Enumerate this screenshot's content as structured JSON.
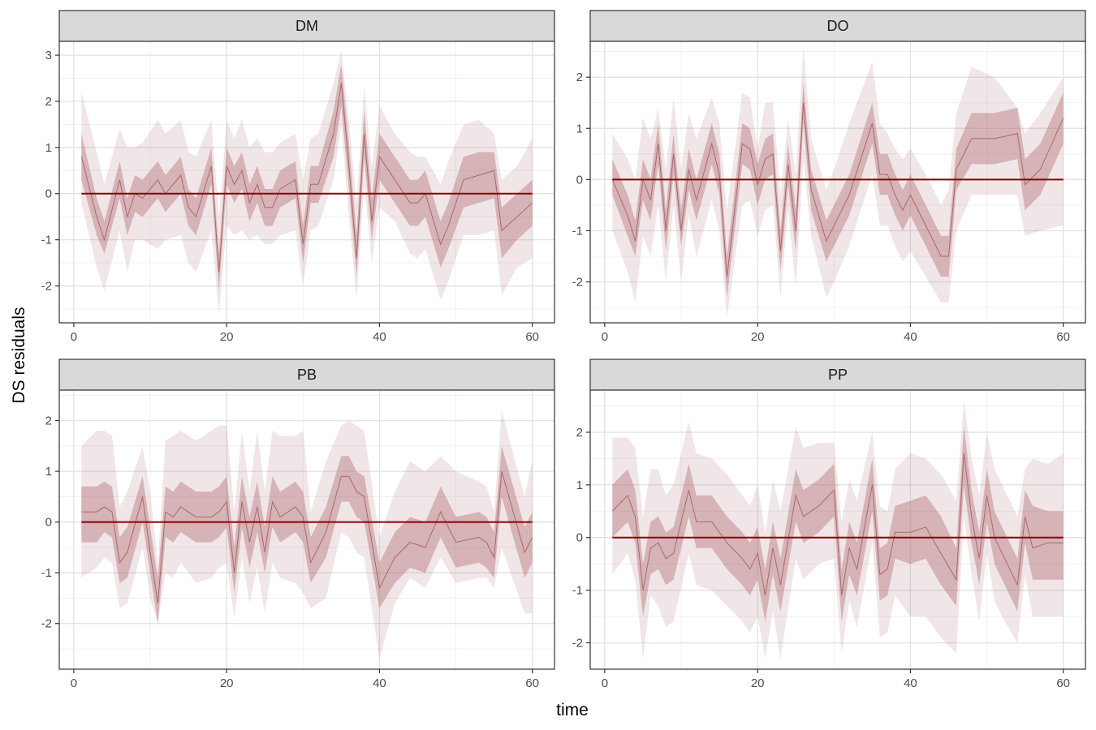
{
  "chart_data": {
    "type": "line",
    "ylabel": "DS residuals",
    "xlabel": "time",
    "colors": {
      "line": "#8b0000",
      "ribbon": "#b47679",
      "band_inner_opacity": 0.45,
      "band_outer_opacity": 0.18
    },
    "x_ticks": [
      0,
      20,
      40,
      60
    ],
    "xlim": [
      -1.9,
      62.9
    ],
    "panels": [
      {
        "name": "DM",
        "ylim": [
          -2.8,
          3.3
        ],
        "y_ticks": [
          -2,
          -1,
          0,
          1,
          2,
          3
        ],
        "y_tick_labels": [
          "-2",
          "-1",
          "0",
          "1",
          "2",
          "3"
        ],
        "x": [
          1,
          3,
          4,
          6,
          7,
          8,
          9,
          11,
          12,
          14,
          15,
          16,
          18,
          19,
          20,
          21,
          22,
          23,
          24,
          25,
          26,
          27,
          29,
          30,
          31,
          32,
          34,
          35,
          36,
          37,
          38,
          39,
          40,
          42,
          44,
          45,
          46,
          48,
          49,
          51,
          53,
          55,
          56,
          58,
          60
        ],
        "median": [
          0.8,
          -0.5,
          -1.0,
          0.3,
          -0.5,
          0.0,
          -0.1,
          0.3,
          0.0,
          0.4,
          -0.3,
          -0.5,
          0.6,
          -1.7,
          0.6,
          0.2,
          0.5,
          -0.2,
          0.2,
          -0.3,
          -0.3,
          0.1,
          0.3,
          -1.1,
          0.2,
          0.2,
          1.3,
          2.4,
          0.6,
          -1.4,
          1.3,
          -0.6,
          0.8,
          0.3,
          -0.2,
          -0.2,
          0.0,
          -1.1,
          -0.7,
          0.3,
          0.4,
          0.5,
          -0.8,
          -0.5,
          -0.2
        ],
        "inner_lo": [
          0.3,
          -0.9,
          -1.3,
          -0.1,
          -0.9,
          -0.4,
          -0.5,
          -0.1,
          -0.4,
          0.0,
          -0.7,
          -0.9,
          0.2,
          -2.1,
          0.2,
          -0.2,
          0.1,
          -0.6,
          -0.2,
          -0.7,
          -0.7,
          -0.3,
          -0.1,
          -1.5,
          -0.2,
          -0.2,
          0.8,
          1.9,
          0.1,
          -1.8,
          0.8,
          -1.0,
          0.3,
          -0.2,
          -0.7,
          -0.7,
          -0.5,
          -1.6,
          -1.2,
          -0.3,
          -0.2,
          -0.1,
          -1.4,
          -1.0,
          -0.7
        ],
        "inner_hi": [
          1.3,
          -0.1,
          -0.6,
          0.7,
          -0.1,
          0.4,
          0.3,
          0.7,
          0.4,
          0.8,
          0.1,
          -0.1,
          1.0,
          -1.3,
          1.0,
          0.6,
          0.9,
          0.2,
          0.6,
          0.1,
          0.1,
          0.5,
          0.7,
          -0.7,
          0.6,
          0.6,
          1.8,
          2.8,
          1.1,
          -0.9,
          1.8,
          -0.1,
          1.3,
          0.8,
          0.3,
          0.3,
          0.5,
          -0.6,
          -0.2,
          0.8,
          0.9,
          0.9,
          -0.3,
          0.0,
          0.3
        ],
        "outer_lo": [
          -0.2,
          -1.6,
          -2.1,
          -0.8,
          -1.7,
          -1.0,
          -1.0,
          -1.2,
          -1.0,
          -0.9,
          -1.5,
          -1.7,
          -0.8,
          -2.6,
          -0.7,
          -0.9,
          -0.8,
          -1.0,
          -0.9,
          -1.1,
          -1.1,
          -0.9,
          -0.8,
          -2.0,
          -0.8,
          -0.7,
          0.3,
          1.5,
          -0.5,
          -2.3,
          0.2,
          -1.5,
          -0.3,
          -0.6,
          -1.3,
          -1.4,
          -1.2,
          -2.3,
          -1.9,
          -0.9,
          -0.9,
          -0.8,
          -2.2,
          -1.6,
          -1.4
        ],
        "outer_hi": [
          2.2,
          0.9,
          0.2,
          1.4,
          1.0,
          1.0,
          1.1,
          1.6,
          1.3,
          1.6,
          0.9,
          0.8,
          1.6,
          -0.5,
          1.6,
          1.2,
          1.6,
          1.0,
          1.2,
          0.9,
          0.9,
          1.1,
          1.3,
          0.3,
          1.2,
          1.3,
          2.4,
          3.1,
          1.6,
          -0.2,
          2.3,
          0.6,
          1.9,
          1.3,
          0.9,
          0.8,
          0.8,
          0.2,
          0.7,
          1.5,
          1.6,
          1.3,
          0.3,
          0.6,
          1.2
        ]
      },
      {
        "name": "DO",
        "ylim": [
          -2.8,
          2.7
        ],
        "y_ticks": [
          -2,
          -1,
          0,
          1,
          2
        ],
        "y_tick_labels": [
          "-2",
          "-1",
          "0",
          "1",
          "2"
        ],
        "x": [
          1,
          3,
          4,
          5,
          6,
          7,
          8,
          9,
          10,
          11,
          12,
          14,
          15,
          16,
          18,
          19,
          20,
          21,
          22,
          23,
          24,
          25,
          26,
          27,
          29,
          30,
          32,
          35,
          36,
          37,
          38,
          39,
          40,
          42,
          44,
          45,
          46,
          48,
          51,
          54,
          55,
          57,
          60
        ],
        "median": [
          0.0,
          -0.7,
          -1.2,
          0.0,
          -0.4,
          0.7,
          -1.0,
          0.5,
          -1.0,
          0.2,
          -0.4,
          0.7,
          0.1,
          -1.9,
          0.7,
          0.6,
          -0.1,
          0.4,
          0.5,
          -1.4,
          0.3,
          -1.0,
          1.5,
          -0.2,
          -1.2,
          -0.9,
          -0.3,
          1.1,
          0.1,
          0.1,
          -0.3,
          -0.6,
          -0.3,
          -0.9,
          -1.5,
          -1.5,
          0.2,
          0.8,
          0.8,
          0.9,
          -0.1,
          0.2,
          1.2
        ],
        "inner_lo": [
          -0.3,
          -1.1,
          -1.5,
          -0.4,
          -0.8,
          0.3,
          -1.4,
          0.1,
          -1.3,
          -0.2,
          -0.8,
          0.3,
          -0.3,
          -2.3,
          0.3,
          0.2,
          -0.5,
          0.0,
          0.1,
          -1.8,
          -0.1,
          -1.4,
          1.1,
          -0.6,
          -1.6,
          -1.3,
          -0.7,
          0.7,
          -0.3,
          -0.3,
          -0.7,
          -1.0,
          -0.7,
          -1.3,
          -1.9,
          -1.9,
          -0.2,
          0.3,
          0.3,
          0.4,
          -0.6,
          -0.3,
          0.7
        ],
        "inner_hi": [
          0.4,
          -0.3,
          -0.8,
          0.4,
          0.0,
          1.1,
          -0.6,
          0.9,
          -0.6,
          0.6,
          0.0,
          1.1,
          0.5,
          -1.5,
          1.1,
          1.0,
          0.3,
          0.8,
          0.9,
          -1.0,
          0.7,
          -0.6,
          1.9,
          0.2,
          -0.8,
          -0.5,
          0.1,
          1.5,
          0.5,
          0.5,
          0.1,
          -0.2,
          0.1,
          -0.5,
          -1.1,
          -1.1,
          0.6,
          1.3,
          1.3,
          1.4,
          0.4,
          0.7,
          1.7
        ],
        "outer_lo": [
          -1.0,
          -1.8,
          -2.4,
          -1.1,
          -1.5,
          -0.5,
          -2.0,
          -0.5,
          -2.0,
          -0.7,
          -1.5,
          -0.4,
          -1.0,
          -2.7,
          -0.5,
          -0.4,
          -1.1,
          -0.6,
          -0.5,
          -2.3,
          -0.6,
          -2.1,
          0.4,
          -1.1,
          -2.3,
          -2.0,
          -1.3,
          0.1,
          -0.9,
          -0.9,
          -1.3,
          -1.6,
          -1.4,
          -1.9,
          -2.4,
          -2.4,
          -1.0,
          -0.3,
          -0.3,
          -0.3,
          -1.1,
          -1.0,
          -0.9
        ],
        "outer_hi": [
          0.9,
          0.4,
          0.0,
          1.2,
          0.8,
          1.4,
          0.2,
          1.6,
          0.2,
          1.3,
          0.8,
          1.6,
          1.1,
          -0.6,
          1.7,
          1.6,
          0.6,
          1.5,
          1.5,
          -0.3,
          1.2,
          0.1,
          2.6,
          0.8,
          -0.2,
          0.2,
          1.1,
          2.3,
          1.1,
          0.9,
          0.6,
          0.4,
          0.6,
          0.1,
          -0.5,
          -0.2,
          1.3,
          2.2,
          2.0,
          1.4,
          0.9,
          1.3,
          2.0
        ]
      },
      {
        "name": "PB",
        "ylim": [
          -2.9,
          2.6
        ],
        "y_ticks": [
          -2,
          -1,
          0,
          1,
          2
        ],
        "y_tick_labels": [
          "-2",
          "-1",
          "0",
          "1",
          "2"
        ],
        "x": [
          1,
          3,
          4,
          5,
          6,
          7,
          9,
          10,
          11,
          12,
          13,
          14,
          16,
          18,
          19,
          20,
          21,
          22,
          23,
          24,
          25,
          26,
          27,
          29,
          30,
          31,
          33,
          35,
          36,
          37,
          38,
          40,
          42,
          44,
          46,
          48,
          50,
          53,
          54,
          55,
          56,
          59,
          60
        ],
        "median": [
          0.2,
          0.2,
          0.3,
          0.2,
          -0.8,
          -0.6,
          0.5,
          -0.6,
          -1.6,
          0.2,
          0.1,
          0.3,
          0.1,
          0.1,
          0.2,
          0.4,
          -1.0,
          0.4,
          -0.4,
          0.3,
          -0.6,
          0.4,
          0.1,
          0.3,
          0.1,
          -0.8,
          -0.2,
          0.9,
          0.9,
          0.6,
          0.5,
          -1.3,
          -0.7,
          -0.4,
          -0.5,
          0.2,
          -0.4,
          -0.3,
          -0.4,
          -0.7,
          1.0,
          -0.6,
          -0.3
        ],
        "inner_lo": [
          -0.4,
          -0.4,
          -0.2,
          -0.3,
          -1.2,
          -1.1,
          0.0,
          -1.0,
          -2.0,
          -0.3,
          -0.4,
          -0.2,
          -0.4,
          -0.4,
          -0.3,
          -0.1,
          -1.4,
          -0.1,
          -0.9,
          -0.2,
          -1.0,
          -0.1,
          -0.4,
          -0.2,
          -0.4,
          -1.2,
          -0.7,
          0.4,
          0.4,
          0.1,
          0.0,
          -1.7,
          -1.2,
          -0.9,
          -1.0,
          -0.3,
          -0.9,
          -0.8,
          -0.9,
          -1.1,
          0.5,
          -1.1,
          -0.8
        ],
        "inner_hi": [
          0.7,
          0.7,
          0.8,
          0.7,
          -0.3,
          -0.1,
          0.9,
          -0.1,
          -1.1,
          0.7,
          0.6,
          0.8,
          0.6,
          0.6,
          0.7,
          0.9,
          -0.5,
          0.9,
          0.1,
          0.8,
          -0.1,
          0.9,
          0.6,
          0.8,
          0.6,
          -0.3,
          0.3,
          1.3,
          1.3,
          1.0,
          0.9,
          -0.8,
          -0.2,
          0.1,
          0.0,
          0.7,
          0.1,
          0.2,
          0.1,
          -0.2,
          1.5,
          -0.1,
          0.2
        ],
        "outer_lo": [
          -1.1,
          -0.9,
          -0.7,
          -0.8,
          -1.7,
          -1.6,
          -0.5,
          -1.5,
          -2.0,
          -1.0,
          -1.1,
          -0.8,
          -1.2,
          -1.1,
          -0.9,
          -0.8,
          -1.9,
          -0.7,
          -1.6,
          -0.9,
          -1.8,
          -0.8,
          -1.1,
          -1.2,
          -1.4,
          -1.7,
          -1.5,
          -0.2,
          -0.3,
          -0.6,
          -0.7,
          -2.7,
          -1.6,
          -1.1,
          -1.3,
          -0.7,
          -1.2,
          -1.1,
          -1.1,
          -1.3,
          -0.5,
          -1.8,
          -1.8
        ],
        "outer_hi": [
          1.5,
          1.8,
          1.8,
          1.7,
          0.3,
          0.6,
          1.5,
          0.6,
          -0.8,
          1.6,
          1.7,
          1.8,
          1.6,
          1.8,
          1.9,
          1.9,
          0.2,
          1.8,
          0.6,
          1.8,
          0.6,
          1.8,
          1.7,
          1.7,
          1.8,
          0.2,
          1.2,
          1.9,
          2.0,
          1.9,
          1.8,
          -0.3,
          0.6,
          1.2,
          1.0,
          1.3,
          1.0,
          0.8,
          0.7,
          0.2,
          2.2,
          0.5,
          1.2
        ]
      },
      {
        "name": "PP",
        "ylim": [
          -2.5,
          2.8
        ],
        "y_ticks": [
          -2,
          -1,
          0,
          1,
          2
        ],
        "y_tick_labels": [
          "-2",
          "-1",
          "0",
          "1",
          "2"
        ],
        "x": [
          1,
          3,
          4,
          5,
          6,
          7,
          8,
          9,
          11,
          12,
          14,
          16,
          18,
          19,
          20,
          21,
          22,
          23,
          25,
          26,
          28,
          30,
          31,
          32,
          33,
          35,
          36,
          37,
          38,
          40,
          42,
          44,
          46,
          47,
          48,
          49,
          50,
          51,
          52,
          54,
          55,
          56,
          58,
          60
        ],
        "median": [
          0.5,
          0.8,
          0.4,
          -1.0,
          -0.2,
          -0.1,
          -0.4,
          -0.3,
          0.9,
          0.3,
          0.3,
          -0.1,
          -0.4,
          -0.6,
          -0.3,
          -1.1,
          -0.2,
          -0.9,
          0.8,
          0.4,
          0.6,
          0.9,
          -1.1,
          -0.2,
          -0.6,
          1.0,
          -0.7,
          -0.6,
          0.1,
          0.1,
          0.2,
          -0.3,
          -0.8,
          1.6,
          0.4,
          -0.4,
          0.8,
          0.0,
          -0.3,
          -0.9,
          0.4,
          -0.2,
          -0.1,
          -0.1
        ],
        "inner_lo": [
          0.0,
          0.3,
          -0.1,
          -1.5,
          -0.7,
          -0.6,
          -0.9,
          -0.8,
          0.4,
          -0.2,
          -0.2,
          -0.6,
          -0.9,
          -1.1,
          -0.8,
          -1.6,
          -0.7,
          -1.4,
          0.3,
          -0.1,
          0.1,
          0.4,
          -1.6,
          -0.7,
          -1.1,
          0.5,
          -1.2,
          -1.1,
          -0.4,
          -0.5,
          -0.4,
          -0.9,
          -1.3,
          1.0,
          -0.1,
          -0.9,
          0.3,
          -0.5,
          -0.8,
          -1.4,
          -0.1,
          -0.8,
          -0.8,
          -0.8
        ],
        "inner_hi": [
          1.0,
          1.3,
          0.9,
          -0.5,
          0.3,
          0.4,
          0.1,
          0.2,
          1.4,
          0.8,
          0.8,
          0.4,
          0.1,
          -0.1,
          0.2,
          -0.6,
          0.3,
          -0.4,
          1.3,
          0.9,
          1.1,
          1.4,
          -0.6,
          0.3,
          -0.1,
          1.5,
          -0.2,
          -0.1,
          0.6,
          0.7,
          0.8,
          0.4,
          -0.2,
          2.1,
          0.9,
          0.1,
          1.3,
          0.5,
          0.2,
          -0.4,
          0.9,
          0.6,
          0.5,
          0.5
        ],
        "outer_lo": [
          -0.7,
          -0.3,
          -0.8,
          -2.3,
          -1.1,
          -1.3,
          -1.7,
          -1.6,
          -0.3,
          -0.9,
          -1.0,
          -1.3,
          -1.6,
          -1.8,
          -1.5,
          -2.3,
          -1.4,
          -2.3,
          -0.4,
          -0.8,
          -0.5,
          -0.4,
          -2.2,
          -1.2,
          -1.7,
          -0.1,
          -1.9,
          -1.8,
          -1.1,
          -1.5,
          -1.5,
          -1.9,
          -2.2,
          0.4,
          -0.7,
          -1.6,
          -0.3,
          -1.2,
          -1.5,
          -2.0,
          -0.7,
          -1.5,
          -1.5,
          -1.5
        ],
        "outer_hi": [
          1.9,
          1.9,
          1.7,
          0.4,
          1.3,
          1.3,
          0.8,
          1.0,
          2.2,
          1.6,
          1.5,
          1.2,
          0.8,
          0.6,
          1.0,
          0.1,
          1.1,
          0.5,
          2.1,
          1.7,
          1.8,
          1.8,
          0.3,
          1.1,
          0.7,
          2.0,
          0.6,
          0.5,
          1.3,
          1.6,
          1.5,
          1.2,
          0.7,
          2.6,
          1.5,
          0.8,
          2.0,
          1.3,
          1.0,
          0.4,
          1.3,
          1.5,
          1.4,
          1.6
        ]
      }
    ]
  }
}
